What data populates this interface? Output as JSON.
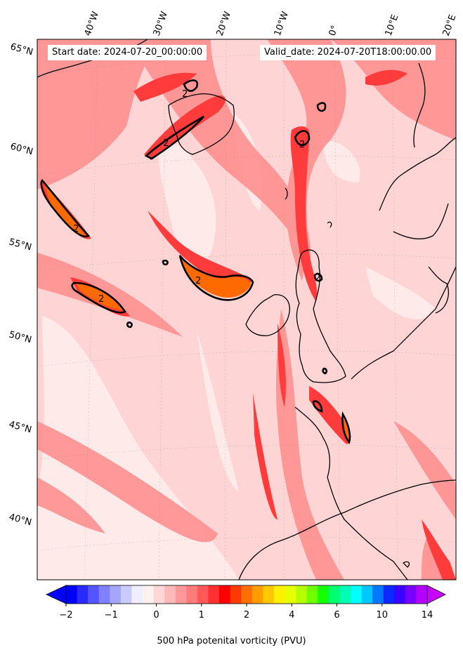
{
  "header": {
    "start_date": "Start date: 2024-07-20_00:00:00",
    "valid_date": "Valid_date: 2024-07-20T18:00:00.00"
  },
  "lon_labels": [
    "40°W",
    "30°W",
    "20°W",
    "10°W",
    "0°",
    "10°E",
    "20°E"
  ],
  "lat_labels": [
    "65°N",
    "60°N",
    "55°N",
    "50°N",
    "45°N",
    "40°N"
  ],
  "contour_labels": [
    "2",
    "2",
    "2",
    "2",
    "2",
    "2",
    "2"
  ],
  "colorbar": {
    "label": "500 hPa potenital vorticity (PVU)",
    "ticks": [
      "−2",
      "−1",
      "0",
      "1",
      "2",
      "4",
      "6",
      "10",
      "14"
    ],
    "colors": [
      "#0000ff",
      "#2a2aff",
      "#5555ff",
      "#7f7fff",
      "#a5a5ff",
      "#cacaff",
      "#eeeeff",
      "#fff0f0",
      "#ffd6d6",
      "#ffb8b8",
      "#ff9999",
      "#ff7a7a",
      "#ff5858",
      "#ff3030",
      "#ff0000",
      "#ff3a00",
      "#ff6e00",
      "#ff9c00",
      "#ffc800",
      "#fff000",
      "#e6ff00",
      "#b4ff00",
      "#6eff00",
      "#14ff00",
      "#00ff6e",
      "#00ffb4",
      "#00ffff",
      "#00c8ff",
      "#0078ff",
      "#0a28ff",
      "#3c00ff",
      "#7800ff",
      "#b400ff"
    ],
    "ext_low": "#0000ff",
    "ext_high": "#c800ff"
  },
  "colors": {
    "background_pv": "#ffd2d2",
    "moderate_pv": "#ff8080",
    "high_pv": "#ff2a2a",
    "peak_pv": "#ff6a00",
    "land_outline": "#000000"
  }
}
